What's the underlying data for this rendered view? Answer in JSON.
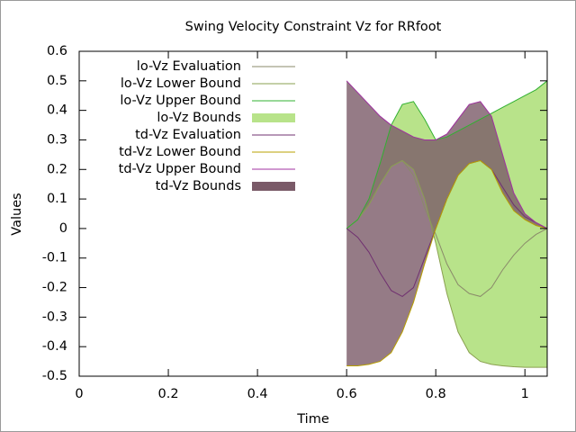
{
  "chart_data": {
    "type": "line",
    "title": "Swing Velocity Constraint Vz for RRfoot",
    "x_label": "Time",
    "y_label": "Values",
    "x": [
      0.6,
      0.625,
      0.65,
      0.675,
      0.7,
      0.725,
      0.75,
      0.775,
      0.8,
      0.825,
      0.85,
      0.875,
      0.9,
      0.925,
      0.95,
      0.975,
      1.0,
      1.025,
      1.05
    ],
    "series": [
      {
        "name": "lo-Vz Evaluation",
        "color": "#8a8a6a",
        "style": "line",
        "values": [
          0,
          0.03,
          0.08,
          0.15,
          0.21,
          0.23,
          0.18,
          0.07,
          -0.02,
          -0.12,
          -0.19,
          -0.22,
          -0.23,
          -0.2,
          -0.14,
          -0.09,
          -0.05,
          -0.02,
          0
        ]
      },
      {
        "name": "lo-Vz Lower Bound",
        "color": "#8aa050",
        "style": "line",
        "values": [
          0,
          0.03,
          0.08,
          0.15,
          0.21,
          0.23,
          0.2,
          0.1,
          -0.05,
          -0.22,
          -0.35,
          -0.42,
          -0.45,
          -0.46,
          -0.465,
          -0.468,
          -0.47,
          -0.47,
          -0.47
        ]
      },
      {
        "name": "lo-Vz Upper Bound",
        "color": "#30b030",
        "style": "line",
        "values": [
          0,
          0.03,
          0.1,
          0.22,
          0.35,
          0.42,
          0.43,
          0.37,
          0.3,
          0.31,
          0.33,
          0.35,
          0.37,
          0.39,
          0.41,
          0.43,
          0.45,
          0.47,
          0.5
        ]
      },
      {
        "name": "lo-Vz Bounds",
        "color": "#b8e38a",
        "style": "band"
      },
      {
        "name": "td-Vz Evaluation",
        "color": "#703070",
        "style": "line",
        "values": [
          0,
          -0.03,
          -0.08,
          -0.15,
          -0.21,
          -0.23,
          -0.2,
          -0.1,
          0,
          0.1,
          0.18,
          0.22,
          0.23,
          0.2,
          0.14,
          0.08,
          0.04,
          0.02,
          0
        ]
      },
      {
        "name": "td-Vz Lower Bound",
        "color": "#b8a000",
        "style": "line",
        "values": [
          -0.465,
          -0.465,
          -0.46,
          -0.45,
          -0.42,
          -0.35,
          -0.25,
          -0.12,
          0,
          0.1,
          0.18,
          0.22,
          0.23,
          0.2,
          0.12,
          0.06,
          0.03,
          0.01,
          0
        ]
      },
      {
        "name": "td-Vz Upper Bound",
        "color": "#a030a0",
        "style": "line",
        "values": [
          0.5,
          0.46,
          0.42,
          0.38,
          0.35,
          0.33,
          0.31,
          0.3,
          0.3,
          0.32,
          0.37,
          0.42,
          0.43,
          0.38,
          0.25,
          0.12,
          0.05,
          0.02,
          0
        ]
      },
      {
        "name": "td-Vz Bounds",
        "color": "#7a5a68",
        "style": "band"
      }
    ],
    "xlim": [
      0,
      1.05
    ],
    "xticks": [
      0,
      0.2,
      0.4,
      0.6,
      0.8,
      1
    ],
    "ylim": [
      -0.5,
      0.6
    ],
    "yticks": [
      -0.5,
      -0.4,
      -0.3,
      -0.2,
      -0.1,
      0,
      0.1,
      0.2,
      0.3,
      0.4,
      0.5,
      0.6
    ],
    "legend": "top-left"
  }
}
